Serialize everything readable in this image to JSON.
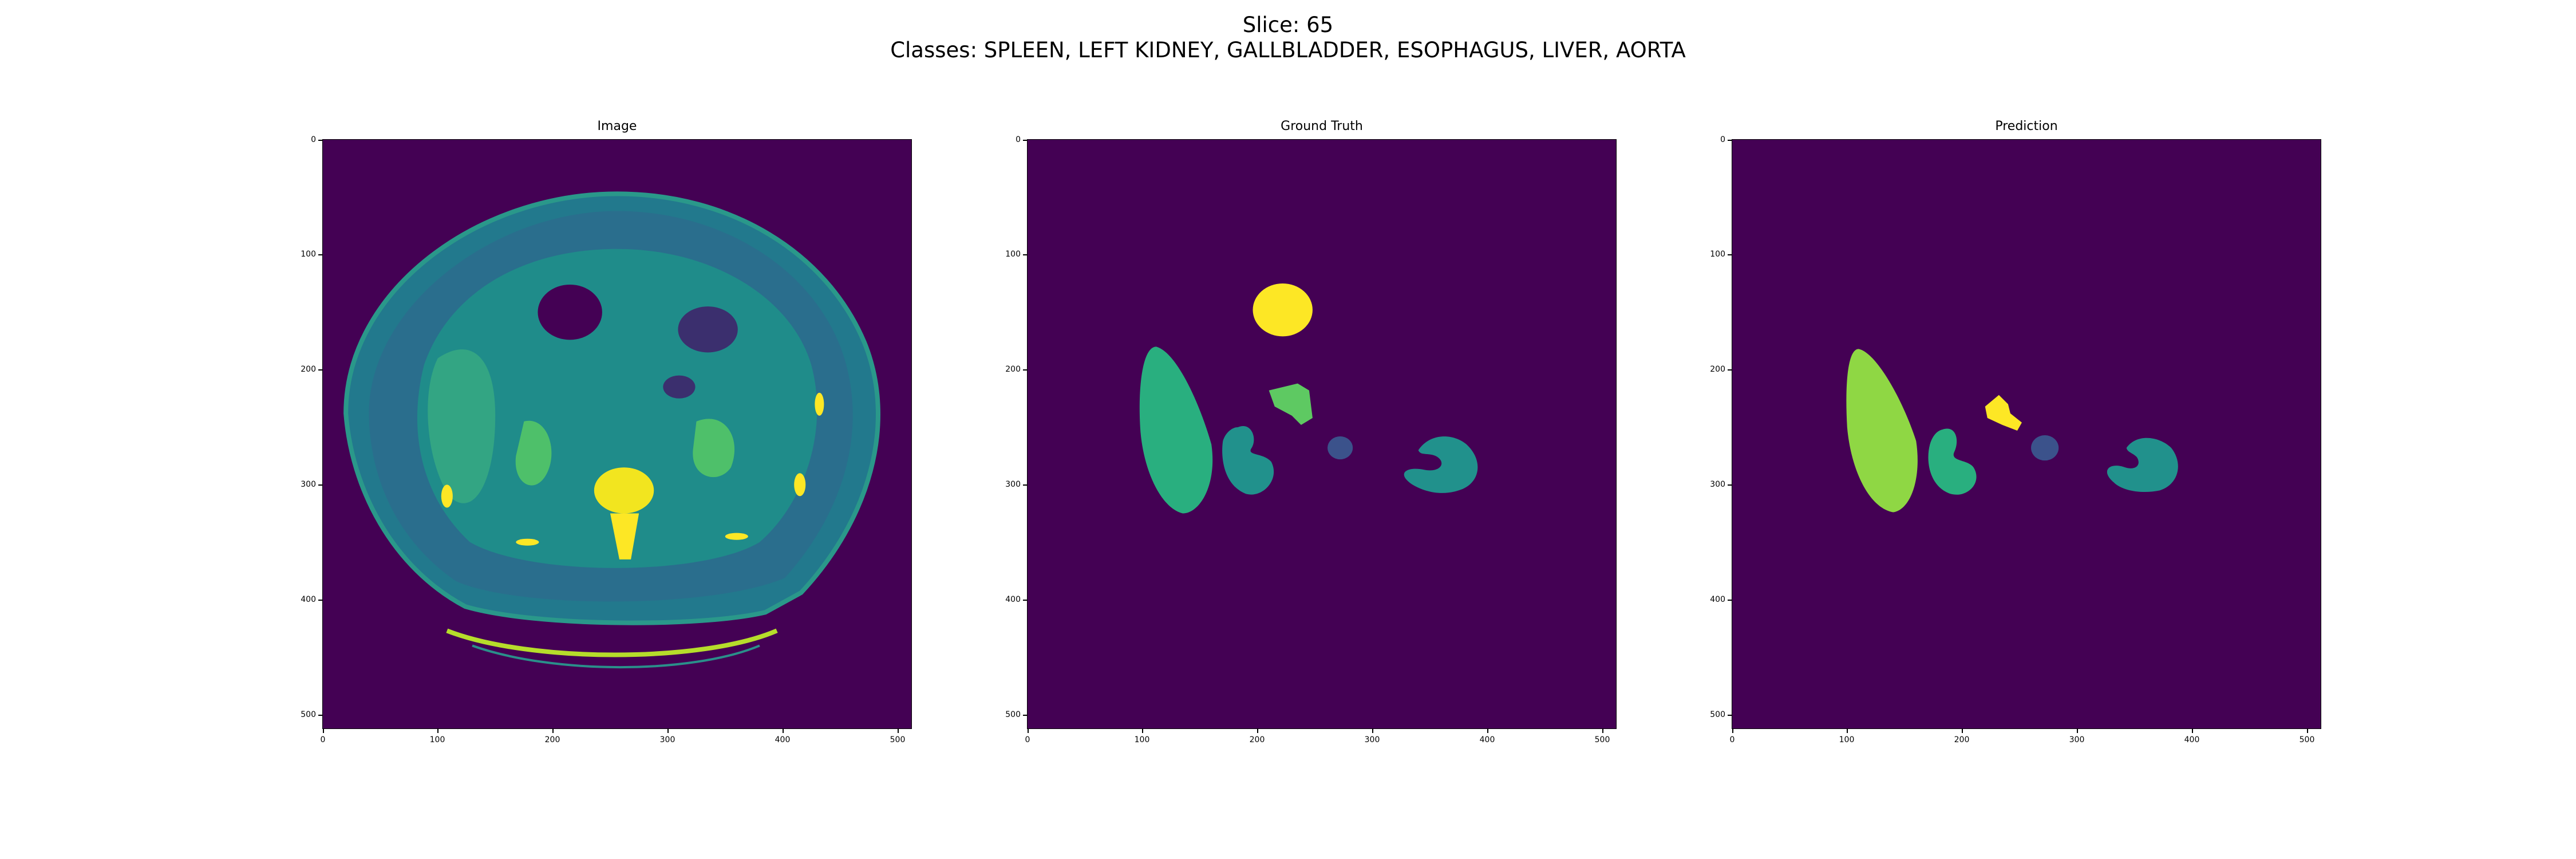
{
  "figure": {
    "title_line1": "Slice: 65",
    "title_line2": "Classes: SPLEEN, LEFT KIDNEY, GALLBLADDER, ESOPHAGUS, LIVER, AORTA"
  },
  "panels": [
    {
      "title": "Image",
      "kind": "ct-scan"
    },
    {
      "title": "Ground Truth",
      "kind": "segmentation-mask"
    },
    {
      "title": "Prediction",
      "kind": "segmentation-mask"
    }
  ],
  "axes": {
    "y_ticks": [
      "0",
      "100",
      "200",
      "300",
      "400",
      "500"
    ],
    "x_ticks": [
      "0",
      "100",
      "200",
      "300",
      "400",
      "500"
    ],
    "range": [
      0,
      512
    ]
  },
  "colors": {
    "background": "#440154",
    "viridis_dark_blue": "#3b528b",
    "viridis_teal": "#21918c",
    "viridis_green": "#29af7f",
    "viridis_light_green": "#5ec962",
    "viridis_lime": "#8fd744",
    "viridis_yellow": "#fde725"
  }
}
